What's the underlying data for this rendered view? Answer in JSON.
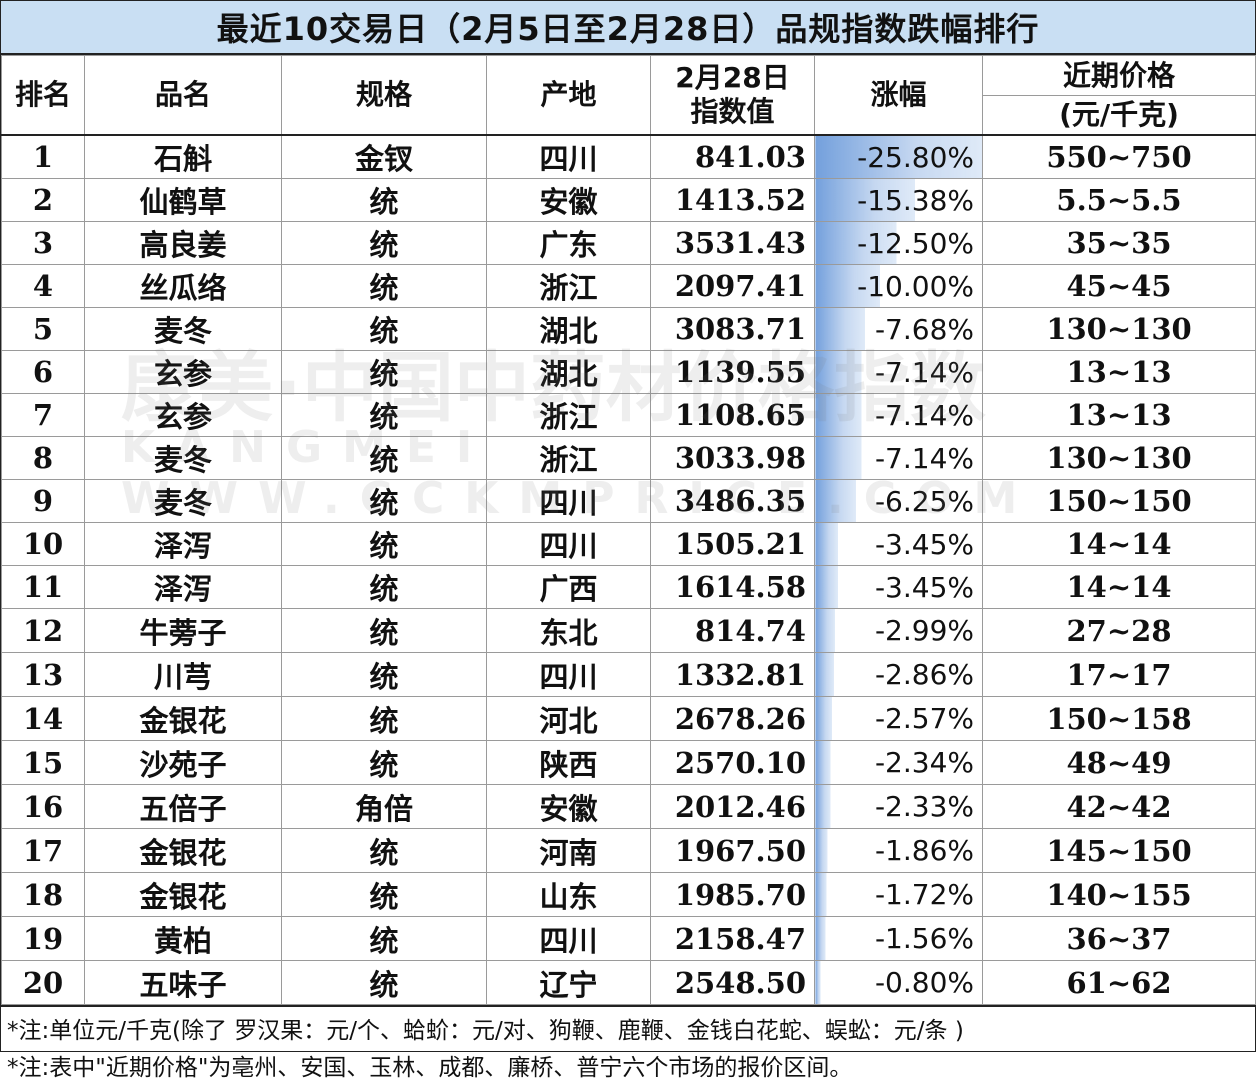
{
  "title": "最近10交易日（2月5日至2月28日）品规指数跌幅排行",
  "headers": {
    "rank": "排名",
    "name": "品名",
    "spec": "规格",
    "origin": "产地",
    "index_line1": "2月28日",
    "index_line2": "指数值",
    "change": "涨幅",
    "price_line1": "近期价格",
    "price_line2": "(元/千克)"
  },
  "rows": [
    {
      "rank": "1",
      "name": "石斛",
      "spec": "金钗",
      "origin": "四川",
      "index": "841.03",
      "change": "-25.80%",
      "change_value": -25.8,
      "price": "550~750"
    },
    {
      "rank": "2",
      "name": "仙鹤草",
      "spec": "统",
      "origin": "安徽",
      "index": "1413.52",
      "change": "-15.38%",
      "change_value": -15.38,
      "price": "5.5~5.5"
    },
    {
      "rank": "3",
      "name": "高良姜",
      "spec": "统",
      "origin": "广东",
      "index": "3531.43",
      "change": "-12.50%",
      "change_value": -12.5,
      "price": "35~35"
    },
    {
      "rank": "4",
      "name": "丝瓜络",
      "spec": "统",
      "origin": "浙江",
      "index": "2097.41",
      "change": "-10.00%",
      "change_value": -10.0,
      "price": "45~45"
    },
    {
      "rank": "5",
      "name": "麦冬",
      "spec": "统",
      "origin": "湖北",
      "index": "3083.71",
      "change": "-7.68%",
      "change_value": -7.68,
      "price": "130~130"
    },
    {
      "rank": "6",
      "name": "玄参",
      "spec": "统",
      "origin": "湖北",
      "index": "1139.55",
      "change": "-7.14%",
      "change_value": -7.14,
      "price": "13~13"
    },
    {
      "rank": "7",
      "name": "玄参",
      "spec": "统",
      "origin": "浙江",
      "index": "1108.65",
      "change": "-7.14%",
      "change_value": -7.14,
      "price": "13~13"
    },
    {
      "rank": "8",
      "name": "麦冬",
      "spec": "统",
      "origin": "浙江",
      "index": "3033.98",
      "change": "-7.14%",
      "change_value": -7.14,
      "price": "130~130"
    },
    {
      "rank": "9",
      "name": "麦冬",
      "spec": "统",
      "origin": "四川",
      "index": "3486.35",
      "change": "-6.25%",
      "change_value": -6.25,
      "price": "150~150"
    },
    {
      "rank": "10",
      "name": "泽泻",
      "spec": "统",
      "origin": "四川",
      "index": "1505.21",
      "change": "-3.45%",
      "change_value": -3.45,
      "price": "14~14"
    },
    {
      "rank": "11",
      "name": "泽泻",
      "spec": "统",
      "origin": "广西",
      "index": "1614.58",
      "change": "-3.45%",
      "change_value": -3.45,
      "price": "14~14"
    },
    {
      "rank": "12",
      "name": "牛蒡子",
      "spec": "统",
      "origin": "东北",
      "index": "814.74",
      "change": "-2.99%",
      "change_value": -2.99,
      "price": "27~28"
    },
    {
      "rank": "13",
      "name": "川芎",
      "spec": "统",
      "origin": "四川",
      "index": "1332.81",
      "change": "-2.86%",
      "change_value": -2.86,
      "price": "17~17"
    },
    {
      "rank": "14",
      "name": "金银花",
      "spec": "统",
      "origin": "河北",
      "index": "2678.26",
      "change": "-2.57%",
      "change_value": -2.57,
      "price": "150~158"
    },
    {
      "rank": "15",
      "name": "沙苑子",
      "spec": "统",
      "origin": "陕西",
      "index": "2570.10",
      "change": "-2.34%",
      "change_value": -2.34,
      "price": "48~49"
    },
    {
      "rank": "16",
      "name": "五倍子",
      "spec": "角倍",
      "origin": "安徽",
      "index": "2012.46",
      "change": "-2.33%",
      "change_value": -2.33,
      "price": "42~42"
    },
    {
      "rank": "17",
      "name": "金银花",
      "spec": "统",
      "origin": "河南",
      "index": "1967.50",
      "change": "-1.86%",
      "change_value": -1.86,
      "price": "145~150"
    },
    {
      "rank": "18",
      "name": "金银花",
      "spec": "统",
      "origin": "山东",
      "index": "1985.70",
      "change": "-1.72%",
      "change_value": -1.72,
      "price": "140~155"
    },
    {
      "rank": "19",
      "name": "黄柏",
      "spec": "统",
      "origin": "四川",
      "index": "2158.47",
      "change": "-1.56%",
      "change_value": -1.56,
      "price": "36~37"
    },
    {
      "rank": "20",
      "name": "五味子",
      "spec": "统",
      "origin": "辽宁",
      "index": "2548.50",
      "change": "-0.80%",
      "change_value": -0.8,
      "price": "61~62"
    }
  ],
  "notes": [
    "*注:单位元/千克(除了 罗汉果：元/个、蛤蚧：元/对、狗鞭、鹿鞭、金钱白花蛇、蜈蚣：元/条 )",
    "*注:表中\"近期价格\"为亳州、安国、玉林、成都、廉桥、普宁六个市场的报价区间。"
  ],
  "watermark": {
    "logo_text": "康美·中国中药材价格指数",
    "url_text": "KANGMEI WWW.CCKMPRICE.COM"
  },
  "colors": {
    "title_bg": "#c9dff3",
    "databar": "#5b8fd6",
    "grid": "#9a9a9a",
    "border": "#222222"
  }
}
